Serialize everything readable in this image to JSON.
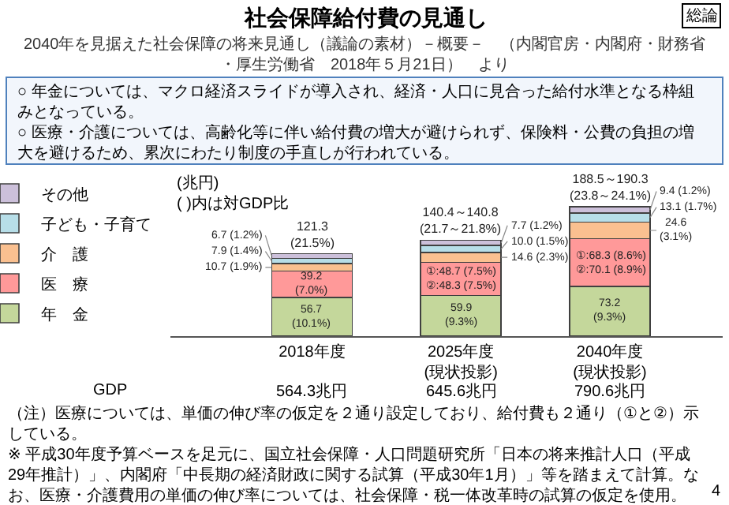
{
  "chart_data": {
    "type": "bar",
    "stacked": true,
    "title": "社会保障給付費の見通し",
    "subtitle": "2040年を見据えた社会保障の将来見通し（議論の素材）－概要－　（内閣官房・内閣府・財務省・厚生労働省　2018年５月21日）　より",
    "categories": [
      "2018年度",
      "2025年度\n(現状投影)",
      "2040年度\n(現状投影)"
    ],
    "series": [
      {
        "name": "年　金",
        "color": "#c4d79b",
        "values": [
          56.7,
          59.9,
          73.2
        ],
        "value_labels": [
          "56.7\n(10.1%)",
          "59.9\n(9.3%)",
          "73.2\n(9.3%)"
        ]
      },
      {
        "name": "医　療",
        "color": "#ff9999",
        "values": [
          39.2,
          48.7,
          70.1
        ],
        "value_labels": [
          "39.2\n(7.0%)",
          "①:48.7 (7.5%)\n②:48.3 (7.5%)",
          "①:68.3 (8.6%)\n②:70.1 (8.9%)"
        ]
      },
      {
        "name": "介　護",
        "color": "#fac090",
        "values": [
          10.7,
          14.6,
          24.6
        ],
        "value_labels": [
          "10.7 (1.9%)",
          "14.6 (2.3%)",
          "24.6\n(3.1%)"
        ]
      },
      {
        "name": "子ども・子育て",
        "color": "#b7dee8",
        "values": [
          7.9,
          10.0,
          13.1
        ],
        "value_labels": [
          "7.9 (1.4%)",
          "10.0 (1.5%)",
          "13.1 (1.7%)"
        ]
      },
      {
        "name": "その他",
        "color": "#ccc0da",
        "values": [
          6.7,
          7.7,
          9.4
        ],
        "value_labels": [
          "6.7 (1.2%)",
          "7.7 (1.2%)",
          "9.4 (1.2%)"
        ]
      }
    ],
    "totals": [
      "121.3\n(21.5%)",
      "140.4～140.8\n(21.7～21.8%)",
      "188.5～190.3\n(23.8～24.1%)"
    ],
    "legend": "left",
    "annotations": [
      "総論",
      "○ 年金については、マクロ経済スライドが導入され、経済・人口に見合った給付水準となる枠組みとなっている。",
      "○ 医療・介護については、高齢化等に伴い給付費の増大が避けられず、保険料・公費の負担の増大を避けるため、累次にわたり制度の手直しが行われている。",
      "(兆円)",
      "( )内は対GDP比",
      "GDP",
      "564.3兆円",
      "645.6兆円",
      "790.6兆円",
      "（注）医療については、単価の伸び率の仮定を２通り設定しており、給付費も２通り（①と②）示している。",
      "※ 平成30年度予算ベースを足元に、国立社会保障・人口問題研究所「日本の将来推計人口（平成29年推計）」、内閣府「中長期の経済財政に関する試算（平成30年1月）」等を踏まえて計算。なお、医療・介護費用の単価の伸び率については、社会保障・税一体改革時の試算の仮定を使用。",
      "4"
    ]
  }
}
